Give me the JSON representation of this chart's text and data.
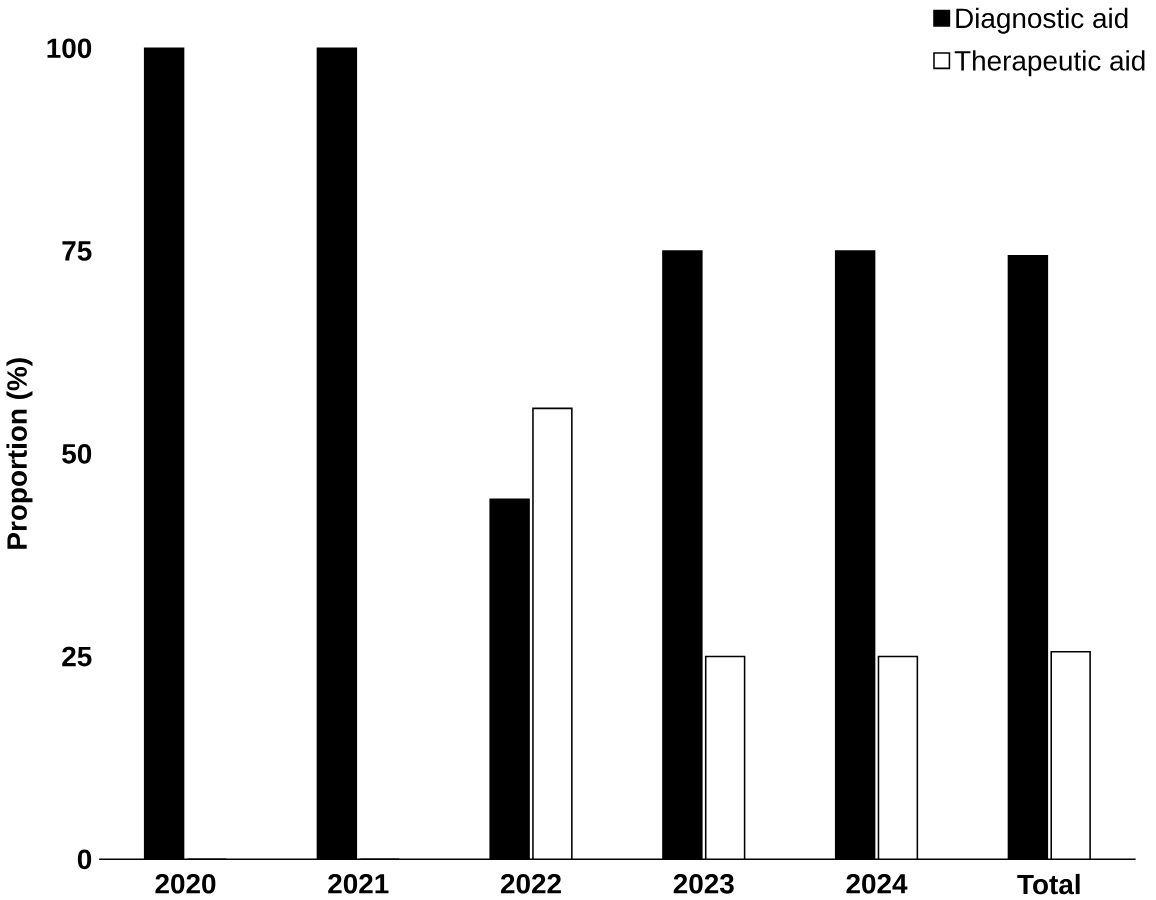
{
  "chart_data": {
    "type": "bar",
    "ylabel": "Proportion (%)",
    "categories": [
      "2020",
      "2021",
      "2022",
      "2023",
      "2024",
      "Total"
    ],
    "series": [
      {
        "name": "Diagnostic aid",
        "color": "#000000",
        "values": [
          100,
          100,
          44.4,
          75,
          75,
          74.4
        ]
      },
      {
        "name": "Therapeutic aid",
        "color": "#ffffff",
        "values": [
          0,
          0,
          55.6,
          25,
          25,
          25.6
        ]
      }
    ],
    "ylim": [
      0,
      100
    ],
    "yticks": [
      0,
      25,
      50,
      75,
      100
    ],
    "legend": "top right"
  }
}
